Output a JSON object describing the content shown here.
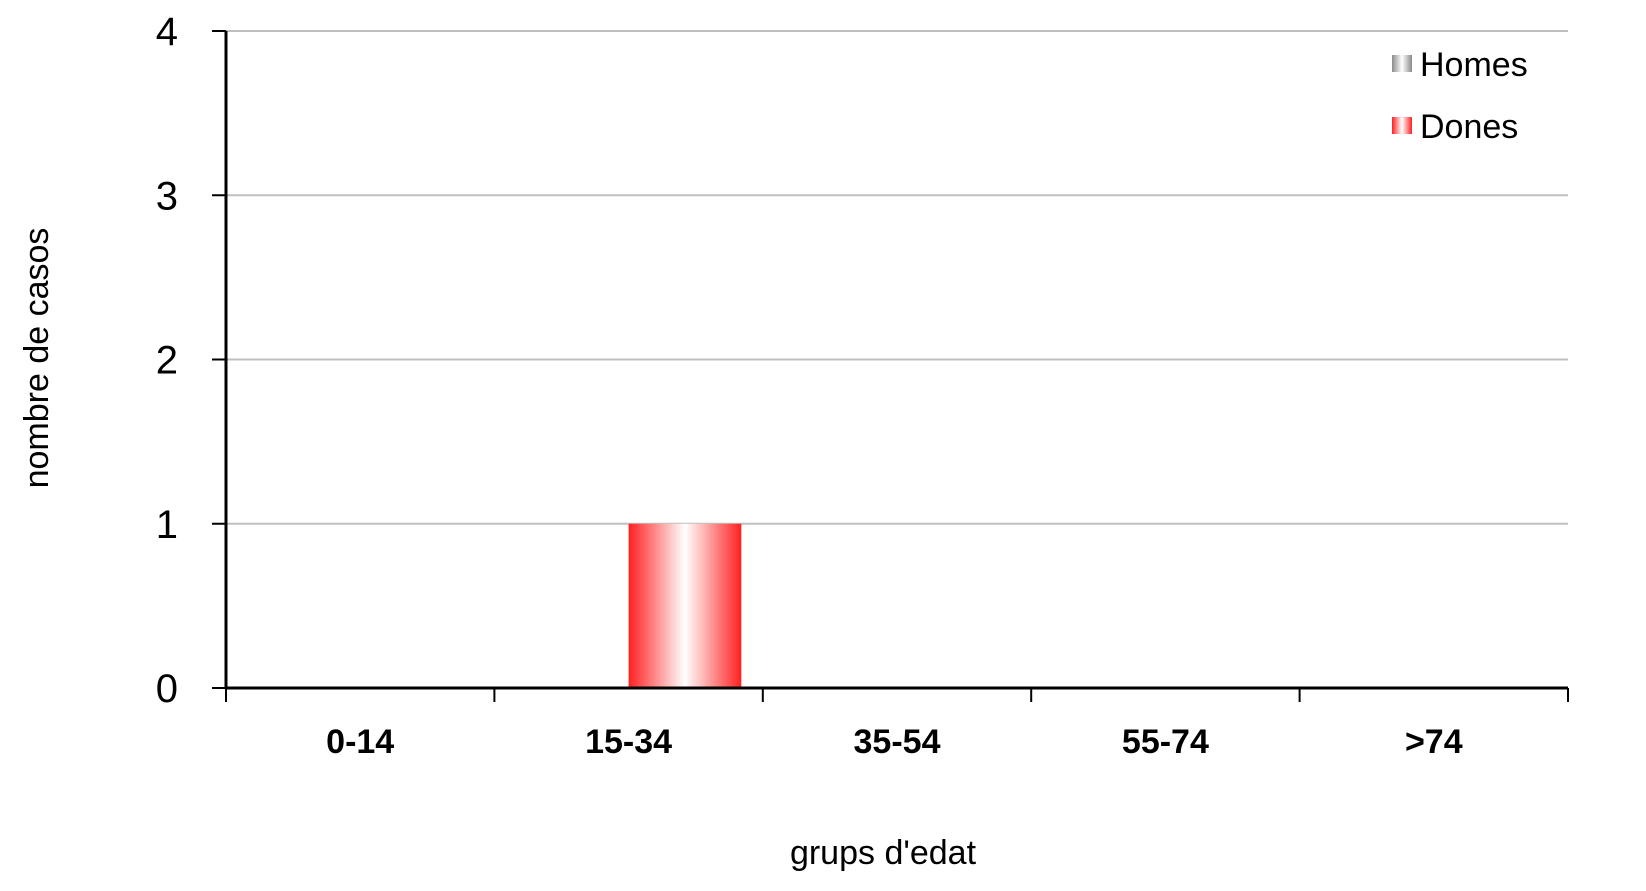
{
  "chart_data": {
    "type": "bar",
    "title": "",
    "xlabel": "grups d'edat",
    "ylabel": "nombre de casos",
    "categories": [
      "0-14",
      "15-34",
      "35-54",
      "55-74",
      ">74"
    ],
    "series": [
      {
        "name": "Homes",
        "values": [
          0,
          0,
          0,
          0,
          0
        ],
        "color": "#9a9a9a"
      },
      {
        "name": "Dones",
        "values": [
          0,
          1,
          0,
          0,
          0
        ],
        "color": "#ff2020"
      }
    ],
    "ylim": [
      0,
      4
    ],
    "yticks": [
      "0",
      "1",
      "2",
      "3",
      "4"
    ],
    "grid": true,
    "legend_position": "top-right"
  }
}
